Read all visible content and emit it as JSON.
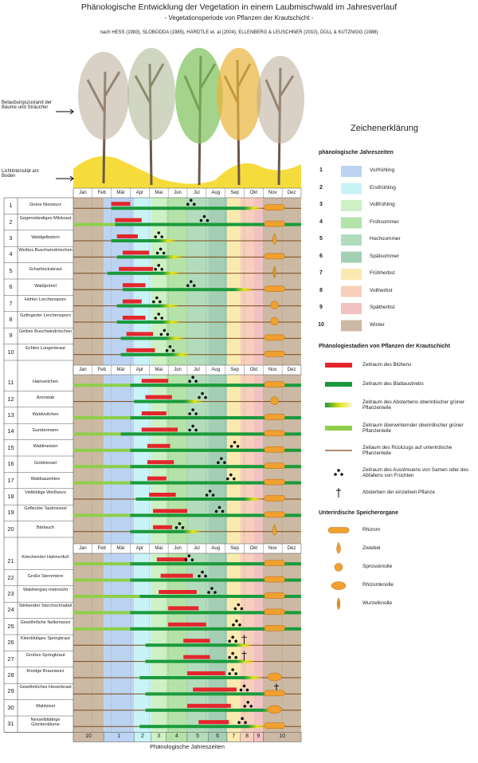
{
  "header": {
    "title": "Phänologische Entwicklung der Vegetation in einem Laubmischwald im Jahresverlauf",
    "subtitle": "- Vegetationsperiode von Pflanzen der Krautschicht -",
    "sources": "nach HESS (1983), SLOBODDA (1985), HÄRDTLE et. al (2004), ELLENBERG & LEUSCHNER (2010), DÜLL & KUTZNIGG (1988)"
  },
  "side_labels": {
    "foliage": "Belaubungszustand der Bäume und Sträucher",
    "light": "Lichtintensität am Boden"
  },
  "months": [
    "Jan",
    "Feb",
    "Mär",
    "Apr",
    "Mai",
    "Jun",
    "Jul",
    "Aug",
    "Sep",
    "Okt",
    "Nov",
    "Dez"
  ],
  "axis_title": "Phänologische Jahreszeiten",
  "seasons": [
    {
      "number": 1,
      "name": "Vorfrühling",
      "color": "#bcd3f2",
      "ranges": [
        [
          1.6,
          3.2
        ]
      ]
    },
    {
      "number": 2,
      "name": "Erstfrühling",
      "color": "#c9f3f6",
      "ranges": [
        [
          3.2,
          4.1
        ]
      ]
    },
    {
      "number": 3,
      "name": "Vollfrühling",
      "color": "#cdf0c4",
      "ranges": [
        [
          4.1,
          4.9
        ]
      ]
    },
    {
      "number": 4,
      "name": "Frühsommer",
      "color": "#b4e2a9",
      "ranges": [
        [
          4.9,
          6.0
        ]
      ]
    },
    {
      "number": 5,
      "name": "Hochsommer",
      "color": "#b3dcbc",
      "ranges": [
        [
          6.0,
          7.1
        ]
      ]
    },
    {
      "number": 6,
      "name": "Spätsommer",
      "color": "#a4cfb5",
      "ranges": [
        [
          7.1,
          8.1
        ]
      ]
    },
    {
      "number": 7,
      "name": "Frühherbst",
      "color": "#fbeab0",
      "ranges": [
        [
          8.1,
          8.8
        ]
      ]
    },
    {
      "number": 8,
      "name": "Vollherbst",
      "color": "#f7cfbb",
      "ranges": [
        [
          8.8,
          9.5
        ]
      ]
    },
    {
      "number": 9,
      "name": "Spätherbst",
      "color": "#f2c2c3",
      "ranges": [
        [
          9.5,
          10.0
        ]
      ]
    },
    {
      "number": 10,
      "name": "Winter",
      "color": "#cbb9a4",
      "ranges": [
        [
          0,
          1.6
        ],
        [
          10.0,
          12
        ]
      ]
    }
  ],
  "legend": {
    "title": "Zeichenerklärung",
    "seasons_title": "phänologische Jahreszeiten",
    "stages_title": "Phänologiestadien von Pflanzen der Krautschicht",
    "stages": [
      "Zeitraum des Blühens",
      "Zeitraum des Blattaustriebs",
      "Zeitraum des Absterbens oberirdischer grüner Pflanzenteile",
      "Zeitraum überwinternder oberirdischer grüner Pflanzenteile",
      "Zeitaum des Rückzugs auf unterirdische Pflanzenteile",
      "Zeitraum des Ausstreuens von Samen oder des Abfallens von Früchten",
      "Absterben der einzelnen Pflanze"
    ],
    "organs_title": "Unterirdische Speicherorgane",
    "organs": [
      "Rhizom",
      "Zwiebel",
      "Sprossknolle",
      "Rhizomknolle",
      "Wurzelknolle"
    ]
  },
  "species": [
    {
      "number": 1,
      "name": "Grüne Nieswurz",
      "bloom": [
        2.0,
        3.0
      ],
      "leaf": [
        2.0,
        9.0
      ],
      "seed": 6.2,
      "organ": "Rhizom"
    },
    {
      "number": 2,
      "name": "Gegenständiges Milzkraut",
      "bloom": [
        2.2,
        3.6
      ],
      "leaf": [
        2.2,
        12
      ],
      "seed": 6.9,
      "organ": "Rhizom",
      "evergreen": true
    },
    {
      "number": 3,
      "name": "Waldgelbstern",
      "bloom": [
        2.3,
        3.4
      ],
      "leaf": [
        2.0,
        4.5
      ],
      "seed": 4.5,
      "organ": "Zwiebel"
    },
    {
      "number": 4,
      "name": "Weißes Buschwindröschen",
      "bloom": [
        2.6,
        4.0
      ],
      "leaf": [
        2.3,
        4.8
      ],
      "seed": 4.6,
      "organ": "Rhizom"
    },
    {
      "number": 5,
      "name": "Scharbockskraut",
      "bloom": [
        2.4,
        4.2
      ],
      "leaf": [
        1.8,
        4.7
      ],
      "seed": 4.5,
      "organ": "Wurzelknolle"
    },
    {
      "number": 6,
      "name": "Waldprimel",
      "bloom": [
        2.6,
        3.8
      ],
      "leaf": [
        2.6,
        8.5
      ],
      "seed": 6.2,
      "organ": "Rhizom"
    },
    {
      "number": 7,
      "name": "Hohler Lerchensporn",
      "bloom": [
        2.6,
        3.6
      ],
      "leaf": [
        2.3,
        4.6
      ],
      "seed": 4.4,
      "organ": "Sprossknolle"
    },
    {
      "number": 8,
      "name": "Gefingerter Lerchensporn",
      "bloom": [
        2.6,
        3.8
      ],
      "leaf": [
        2.3,
        4.7
      ],
      "seed": 4.5,
      "organ": "Sprossknolle"
    },
    {
      "number": 9,
      "name": "Gelbes Buschwindröschen",
      "bloom": [
        2.8,
        4.2
      ],
      "leaf": [
        2.5,
        4.9
      ],
      "seed": 4.8,
      "organ": "Rhizom"
    },
    {
      "number": 10,
      "name": "Echtes Lungenkraut",
      "bloom": [
        2.8,
        4.3
      ],
      "leaf": [
        2.5,
        5.2
      ],
      "seed": 5.1,
      "organ": "Rhizom"
    },
    {
      "number": 11,
      "name": "Hainveilchen",
      "bloom": [
        3.6,
        5.0
      ],
      "leaf": [
        3.0,
        12
      ],
      "seed": 6.3,
      "organ": "Rhizom",
      "evergreen": true
    },
    {
      "number": 12,
      "name": "Aronstab",
      "bloom": [
        3.8,
        5.2
      ],
      "leaf": [
        3.2,
        5.9
      ],
      "seed": 6.8,
      "organ": "Sprossknolle"
    },
    {
      "number": 13,
      "name": "Waldveilchen",
      "bloom": [
        3.6,
        4.9
      ],
      "leaf": [
        3.0,
        12
      ],
      "seed": 6.3,
      "organ": "Rhizom",
      "evergreen": true
    },
    {
      "number": 14,
      "name": "Gundermann",
      "bloom": [
        3.6,
        5.5
      ],
      "leaf": [
        2.5,
        12
      ],
      "seed": 6.3,
      "organ": "Rhizom",
      "evergreen": true
    },
    {
      "number": 15,
      "name": "Waldmeister",
      "bloom": [
        3.9,
        5.1
      ],
      "leaf": [
        3.0,
        12
      ],
      "seed": 8.5,
      "organ": "Rhizom",
      "evergreen": true
    },
    {
      "number": 16,
      "name": "Goldnessel",
      "bloom": [
        3.9,
        5.3
      ],
      "leaf": [
        3.0,
        12
      ],
      "seed": 7.8,
      "organ": "Rhizom",
      "evergreen": true
    },
    {
      "number": 17,
      "name": "Waldsauerklee",
      "bloom": [
        3.9,
        4.9
      ],
      "leaf": [
        3.0,
        12
      ],
      "seed": 8.3,
      "organ": "Rhizom",
      "evergreen": true
    },
    {
      "number": 18,
      "name": "Vielblütige Weißwurz",
      "bloom": [
        4.0,
        5.4
      ],
      "leaf": [
        3.3,
        9.0
      ],
      "seed": 7.2,
      "organ": "Rhizom"
    },
    {
      "number": 19,
      "name": "Gefleckte Taubnessel",
      "bloom": [
        4.2,
        6.0
      ],
      "leaf": [
        3.0,
        12
      ],
      "seed": 7.7,
      "organ": "Rhizom",
      "evergreen": true
    },
    {
      "number": 20,
      "name": "Bärlauch",
      "bloom": [
        4.2,
        5.2
      ],
      "leaf": [
        3.0,
        5.8
      ],
      "seed": 5.6,
      "organ": "Zwiebel"
    },
    {
      "number": 21,
      "name": "Kriechender Hahnenfuß",
      "bloom": [
        4.4,
        6.0
      ],
      "leaf": [
        3.0,
        12
      ],
      "seed": 6.1,
      "organ": "Rhizom",
      "evergreen": true
    },
    {
      "number": 22,
      "name": "Große Sternmiere",
      "bloom": [
        4.6,
        6.3
      ],
      "leaf": [
        3.0,
        12
      ],
      "seed": 6.8,
      "organ": "Rhizom",
      "evergreen": true
    },
    {
      "number": 23,
      "name": "Waldvergiss-meinnicht",
      "bloom": [
        4.5,
        6.5
      ],
      "leaf": [
        3.5,
        12
      ],
      "seed": 7.3,
      "organ": "Rhizom",
      "evergreen": true
    },
    {
      "number": 24,
      "name": "Stinkender Storchschnabel",
      "bloom": [
        5.0,
        6.6
      ],
      "leaf": [
        3.0,
        12
      ],
      "seed": 8.7,
      "organ": "Rhizom",
      "evergreen": true
    },
    {
      "number": 25,
      "name": "Gewöhnliche Nelkenwurz",
      "bloom": [
        5.0,
        7.0
      ],
      "leaf": [
        3.0,
        12
      ],
      "seed": 8.6,
      "organ": "Rhizom",
      "evergreen": true
    },
    {
      "number": 26,
      "name": "Kleinblütiges Springkraut",
      "bloom": [
        5.8,
        7.2
      ],
      "leaf": [
        3.8,
        8.5
      ],
      "seed": 8.4,
      "death": 9.0
    },
    {
      "number": 27,
      "name": "Großes Springkraut",
      "bloom": [
        5.8,
        7.2
      ],
      "leaf": [
        3.8,
        8.6
      ],
      "seed": 8.4,
      "death": 9.0
    },
    {
      "number": 28,
      "name": "Knotige Braunwurz",
      "bloom": [
        6.0,
        8.0
      ],
      "leaf": [
        3.5,
        9.0
      ],
      "seed": 8.4,
      "organ": "Rhizomknolle"
    },
    {
      "number": 29,
      "name": "Gewöhnliches Hexenkraut",
      "bloom": [
        6.3,
        8.6
      ],
      "leaf": [
        3.8,
        10.0
      ],
      "seed": 9.0,
      "organ": "Rhizom",
      "death": 10.7
    },
    {
      "number": 30,
      "name": "Waldziest",
      "bloom": [
        6.0,
        8.3
      ],
      "leaf": [
        3.8,
        10.0
      ],
      "seed": 9.2,
      "organ": "Rhizomknolle"
    },
    {
      "number": 31,
      "name": "Nesselblättrige Glockenblume",
      "bloom": [
        6.6,
        8.2
      ],
      "leaf": [
        3.5,
        9.2
      ],
      "seed": 8.9,
      "organ": "Rhizom"
    }
  ]
}
